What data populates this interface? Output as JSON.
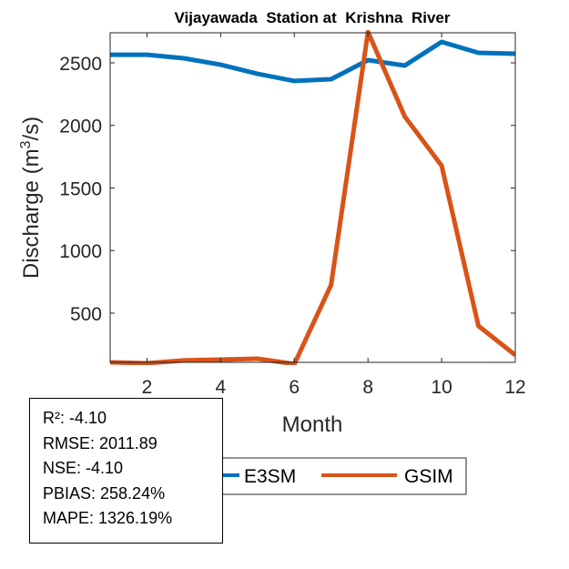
{
  "chart_data": {
    "type": "line",
    "title": "Vijayawada  Station at  Krishna  River",
    "xlabel": "Month",
    "ylabel": "Discharge (m",
    "ylabel_sup": "3",
    "ylabel_tail": "/s)",
    "xlim": [
      1,
      12
    ],
    "ylim": [
      107,
      2740
    ],
    "xticks": [
      2,
      4,
      6,
      8,
      10,
      12
    ],
    "yticks": [
      500,
      1000,
      1500,
      2000,
      2500
    ],
    "grid": false,
    "legend_position": "bottom-center",
    "x": [
      1,
      2,
      3,
      4,
      5,
      6,
      7,
      8,
      9,
      10,
      11,
      12
    ],
    "series": [
      {
        "name": "E3SM",
        "color": "#0072BD",
        "values": [
          2565,
          2565,
          2536,
          2485,
          2412,
          2355,
          2369,
          2522,
          2478,
          2667,
          2580,
          2573
        ]
      },
      {
        "name": "GSIM",
        "color": "#D95319",
        "values": [
          107,
          100,
          122,
          129,
          136,
          93,
          726,
          2747,
          2071,
          1678,
          398,
          165
        ]
      }
    ]
  },
  "stats": {
    "lines": [
      "R²: -4.10",
      "RMSE: 2011.89",
      "NSE: -4.10",
      "PBIAS: 258.24%",
      "MAPE: 1326.19%"
    ]
  }
}
